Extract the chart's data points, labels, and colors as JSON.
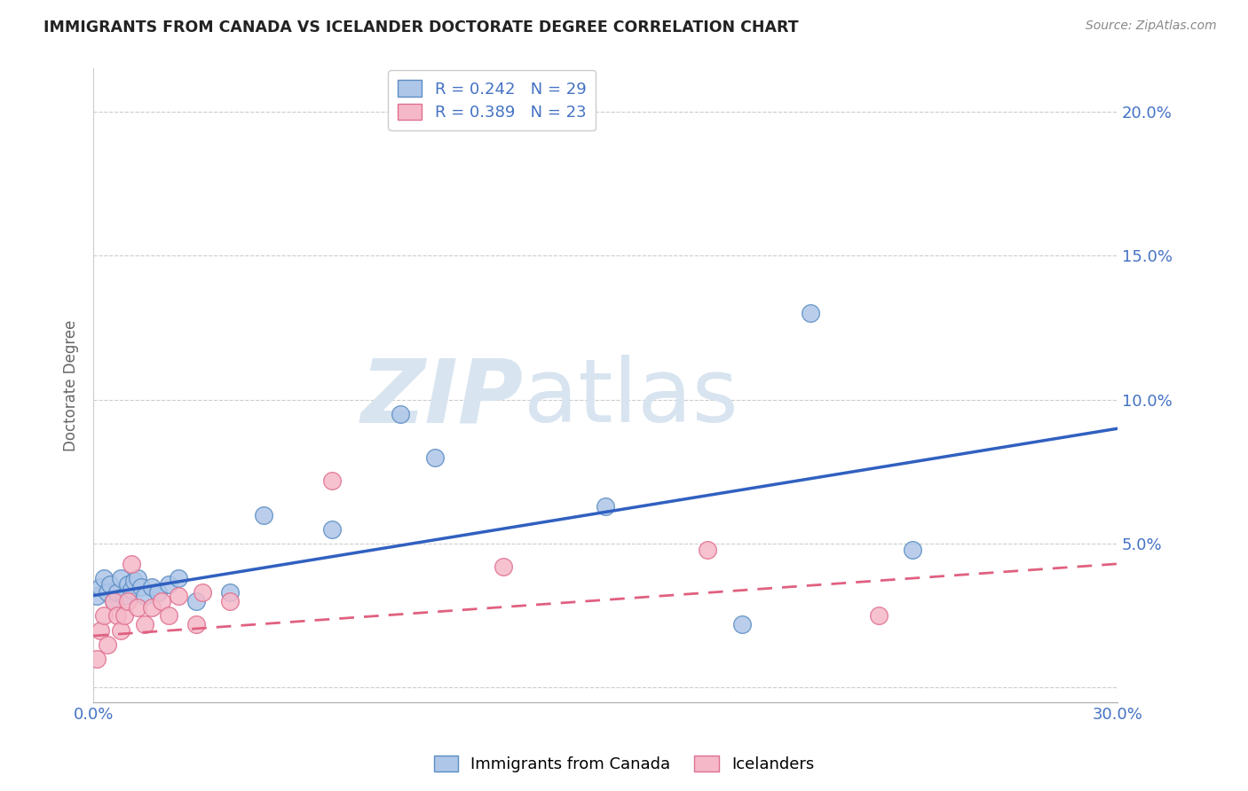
{
  "title": "IMMIGRANTS FROM CANADA VS ICELANDER DOCTORATE DEGREE CORRELATION CHART",
  "source": "Source: ZipAtlas.com",
  "ylabel": "Doctorate Degree",
  "xlim": [
    0.0,
    0.3
  ],
  "ylim": [
    -0.005,
    0.215
  ],
  "yticks": [
    0.0,
    0.05,
    0.1,
    0.15,
    0.2
  ],
  "ytick_labels": [
    "",
    "5.0%",
    "10.0%",
    "15.0%",
    "20.0%"
  ],
  "xticks": [
    0.0,
    0.05,
    0.1,
    0.15,
    0.2,
    0.25,
    0.3
  ],
  "xtick_labels": [
    "0.0%",
    "",
    "",
    "",
    "",
    "",
    "30.0%"
  ],
  "blue_R": 0.242,
  "blue_N": 29,
  "pink_R": 0.389,
  "pink_N": 23,
  "blue_fill_color": "#aec6e8",
  "pink_fill_color": "#f5b8c8",
  "blue_edge_color": "#5b8ec4",
  "pink_edge_color": "#e07090",
  "blue_line_color": "#3060c0",
  "pink_line_color": "#e06080",
  "tick_color": "#4472c4",
  "watermark_text": "ZIPatlas",
  "watermark_color": "#d8e4f0",
  "blue_scatter_x": [
    0.001,
    0.002,
    0.003,
    0.004,
    0.005,
    0.006,
    0.007,
    0.008,
    0.009,
    0.01,
    0.011,
    0.012,
    0.013,
    0.014,
    0.015,
    0.017,
    0.019,
    0.022,
    0.025,
    0.03,
    0.04,
    0.05,
    0.07,
    0.09,
    0.1,
    0.15,
    0.19,
    0.21,
    0.24
  ],
  "blue_scatter_y": [
    0.032,
    0.035,
    0.038,
    0.033,
    0.036,
    0.03,
    0.033,
    0.038,
    0.032,
    0.036,
    0.034,
    0.037,
    0.038,
    0.035,
    0.032,
    0.035,
    0.033,
    0.036,
    0.038,
    0.03,
    0.033,
    0.06,
    0.055,
    0.095,
    0.08,
    0.063,
    0.022,
    0.13,
    0.048
  ],
  "pink_scatter_x": [
    0.001,
    0.002,
    0.003,
    0.004,
    0.006,
    0.007,
    0.008,
    0.009,
    0.01,
    0.011,
    0.013,
    0.015,
    0.017,
    0.02,
    0.022,
    0.025,
    0.03,
    0.032,
    0.04,
    0.07,
    0.12,
    0.18,
    0.23
  ],
  "pink_scatter_y": [
    0.01,
    0.02,
    0.025,
    0.015,
    0.03,
    0.025,
    0.02,
    0.025,
    0.03,
    0.043,
    0.028,
    0.022,
    0.028,
    0.03,
    0.025,
    0.032,
    0.022,
    0.033,
    0.03,
    0.072,
    0.042,
    0.048,
    0.025
  ],
  "blue_trend_x": [
    0.0,
    0.3
  ],
  "blue_trend_y": [
    0.032,
    0.09
  ],
  "pink_trend_x": [
    0.0,
    0.3
  ],
  "pink_trend_y": [
    0.018,
    0.043
  ],
  "legend_text_color": "#4472c4"
}
